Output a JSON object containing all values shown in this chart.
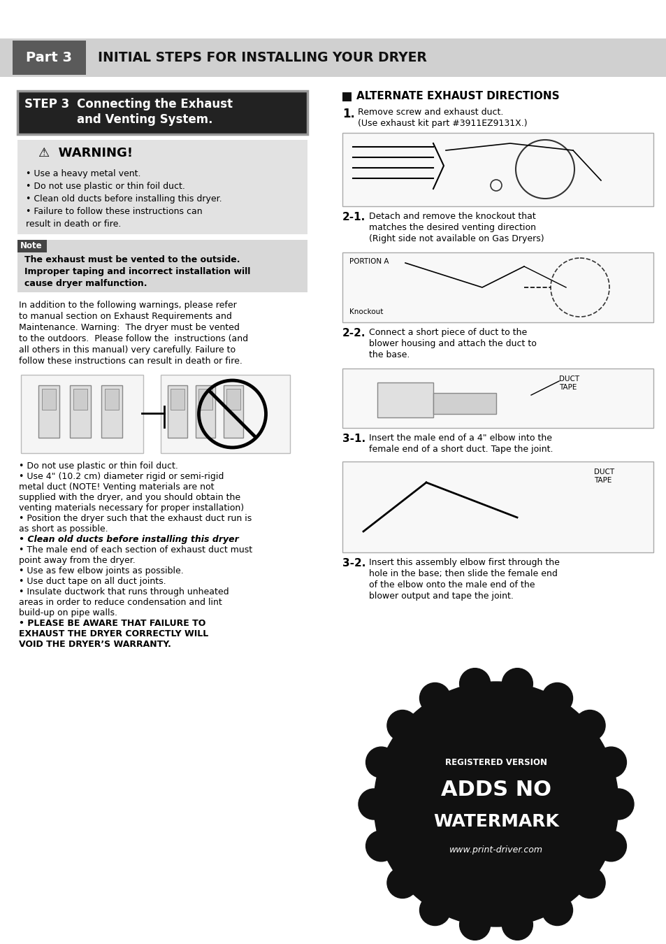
{
  "bg_color": "#ffffff",
  "header_bar_color": "#d0d0d0",
  "header_dark_color": "#5a5a5a",
  "header_title": "INITIAL STEPS FOR INSTALLING YOUR DRYER",
  "part_label": "Part 3",
  "step_header_bg": "#222222",
  "warning_bg": "#e0e0e0",
  "warning_title": "⚠  WARNING!",
  "warning_bullets": [
    "Use a heavy metal vent.",
    "Do not use plastic or thin foil duct.",
    "Clean old ducts before installing this dryer.",
    "Failure to follow these instructions can",
    "  result in death or fire."
  ],
  "note_bg": "#d4d4d4",
  "note_label": "Note",
  "note_text_lines": [
    "The exhaust must be vented to the outside.",
    "Improper taping and incorrect installation will",
    "cause dryer malfunction."
  ],
  "body_text_left": [
    "In addition to the following warnings, please refer",
    "to manual section on Exhaust Requirements and",
    "Maintenance. Warning:  The dryer must be vented",
    "to the outdoors.  Please follow the  instructions (and",
    "all others in this manual) very carefully. Failure to",
    "follow these instructions can result in death or fire."
  ],
  "bullets_bottom_left": [
    [
      "Do not use plastic or thin foil duct.",
      false,
      false
    ],
    [
      "Use 4\" (10.2 cm) diameter rigid or semi-rigid",
      false,
      false
    ],
    [
      "  metal duct (NOTE! Venting materials are not",
      false,
      false
    ],
    [
      "  supplied with the dryer, and you should obtain the",
      false,
      false
    ],
    [
      "  venting materials necessary for proper installation)",
      false,
      false
    ],
    [
      "Position the dryer such that the exhaust duct run is",
      false,
      false
    ],
    [
      "  as short as possible.",
      false,
      false
    ],
    [
      "Clean old ducts before installing this dryer",
      true,
      true
    ],
    [
      "The male end of each section of exhaust duct must",
      false,
      false
    ],
    [
      "  point away from the dryer.",
      false,
      false
    ],
    [
      "Use as few elbow joints as possible.",
      false,
      false
    ],
    [
      "Use duct tape on all duct joints.",
      false,
      false
    ],
    [
      "Insulate ductwork that runs through unheated",
      false,
      false
    ],
    [
      "  areas in order to reduce condensation and lint",
      false,
      false
    ],
    [
      "  build-up on pipe walls.",
      false,
      false
    ],
    [
      "PLEASE BE AWARE THAT FAILURE TO",
      true,
      false
    ],
    [
      "  EXHAUST THE DRYER CORRECTLY WILL",
      true,
      false
    ],
    [
      "  VOID THE DRYER’S WARRANTY.",
      true,
      false
    ]
  ],
  "right_section_title": "ALTERNATE EXHAUST DIRECTIONS",
  "step1_bold": "1.",
  "step1_text": " Remove screw and exhaust duct.",
  "step1_sub": "   (Use exhaust kit part #3911EZ9131X.)",
  "step21_bold": "2-1.",
  "step21_text": " Detach and remove the knockout that",
  "step21_lines": [
    "      matches the desired venting direction",
    "      (Right side not available on Gas Dryers)"
  ],
  "step22_bold": "2-2.",
  "step22_text": "  Connect a short piece of duct to the",
  "step22_lines": [
    "      blower housing and attach the duct to",
    "      the base."
  ],
  "step31_bold": "3-1.",
  "step31_text": " Insert the male end of a 4\" elbow into the",
  "step31_lines": [
    "      female end of a short duct. Tape the joint."
  ],
  "step32_bold": "3-2.",
  "step32_text": " Insert this assembly elbow first through the",
  "step32_lines": [
    "      hole in the base; then slide the female end",
    "      of the elbow onto the male end of the",
    "      blower output and tape the joint."
  ],
  "watermark_text1": "ADDS NO",
  "watermark_text2": "WATERMARK",
  "watermark_text3": "www.print-driver.com",
  "watermark_color": "#111111"
}
